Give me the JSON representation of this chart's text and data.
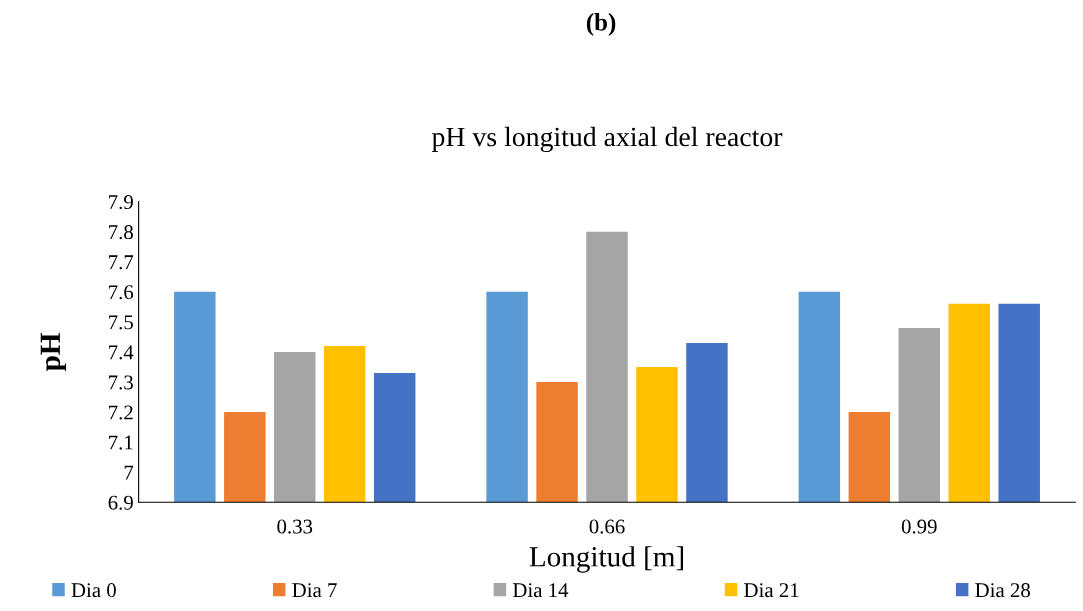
{
  "chart_data": {
    "type": "bar",
    "title": "pH vs longitud axial del reactor",
    "xlabel": "Longitud [m]",
    "ylabel": "pH",
    "annotations": [
      "(b)"
    ],
    "categories": [
      "0.33",
      "0.66",
      "0.99"
    ],
    "series": [
      {
        "name": "Dia 0",
        "color": "#5b9bd5",
        "values": [
          7.6,
          7.6,
          7.6
        ]
      },
      {
        "name": "Dia 7",
        "color": "#ed7d31",
        "values": [
          7.2,
          7.3,
          7.2
        ]
      },
      {
        "name": "Dia 14",
        "color": "#a5a5a5",
        "values": [
          7.4,
          7.8,
          7.48
        ]
      },
      {
        "name": "Dia 21",
        "color": "#ffc000",
        "values": [
          7.42,
          7.35,
          7.56
        ]
      },
      {
        "name": "Dia 28",
        "color": "#4472c4",
        "values": [
          7.33,
          7.43,
          7.56
        ]
      }
    ],
    "ylim": [
      6.9,
      7.9
    ],
    "yticks": [
      6.9,
      7,
      7.1,
      7.2,
      7.3,
      7.4,
      7.5,
      7.6,
      7.7,
      7.8,
      7.9
    ],
    "grid": false,
    "legend": "bottom"
  }
}
